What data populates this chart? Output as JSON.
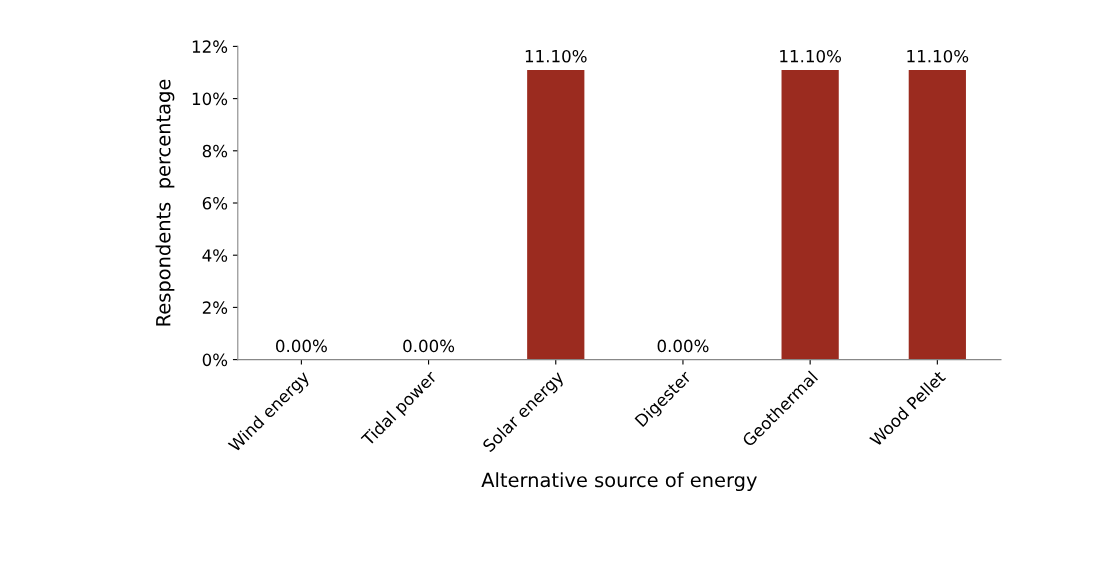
{
  "chart_data": {
    "type": "bar",
    "categories": [
      "Wind energy",
      "Tidal power",
      "Solar energy",
      "Digester",
      "Geothermal",
      "Wood Pellet"
    ],
    "values": [
      0,
      0,
      11.1,
      0,
      11.1,
      11.1
    ],
    "value_labels": [
      "0.00%",
      "0.00%",
      "11.10%",
      "0.00%",
      "11.10%",
      "11.10%"
    ],
    "color": "#9b2b1f",
    "xlabel": "Alternative source of energy",
    "ylabel": "Respondents  percentage",
    "ylim": [
      0,
      12
    ],
    "yticks": [
      {
        "value": 0,
        "label": "0%"
      },
      {
        "value": 2,
        "label": "2%"
      },
      {
        "value": 4,
        "label": "4%"
      },
      {
        "value": 6,
        "label": "6%"
      },
      {
        "value": 8,
        "label": "8%"
      },
      {
        "value": 10,
        "label": "10%"
      },
      {
        "value": 12,
        "label": "12%"
      }
    ],
    "grid": false,
    "legend": false
  }
}
